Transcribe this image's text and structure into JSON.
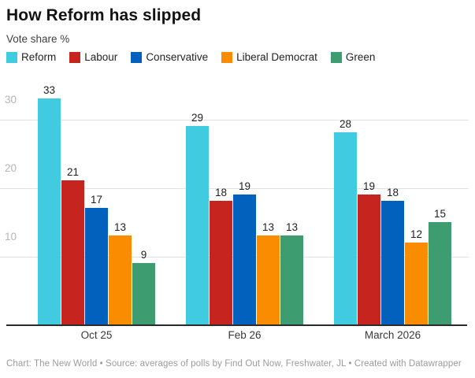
{
  "header": {
    "title": "How Reform has slipped",
    "subtitle": "Vote share %"
  },
  "chart_data": {
    "type": "bar",
    "title": "How Reform has slipped",
    "ylabel": "Vote share %",
    "categories": [
      "Oct 25",
      "Feb 26",
      "March 2026"
    ],
    "series": [
      {
        "name": "Reform",
        "color": "#41cbe0",
        "values": [
          33,
          29,
          28
        ]
      },
      {
        "name": "Labour",
        "color": "#c5241f",
        "values": [
          21,
          18,
          19
        ]
      },
      {
        "name": "Conservative",
        "color": "#0261bd",
        "values": [
          17,
          19,
          18
        ]
      },
      {
        "name": "Liberal Democrat",
        "color": "#f98c00",
        "values": [
          13,
          13,
          12
        ]
      },
      {
        "name": "Green",
        "color": "#3d9c70",
        "values": [
          9,
          13,
          15
        ]
      }
    ],
    "y_ticks": [
      10,
      20,
      30
    ],
    "ylim": [
      0,
      35
    ],
    "grid": true,
    "legend_position": "top",
    "bar_labels": true
  },
  "footer": {
    "text": "Chart: The New World • Source: averages of polls by Find Out Now, Freshwater, JL • Created with Datawrapper"
  }
}
